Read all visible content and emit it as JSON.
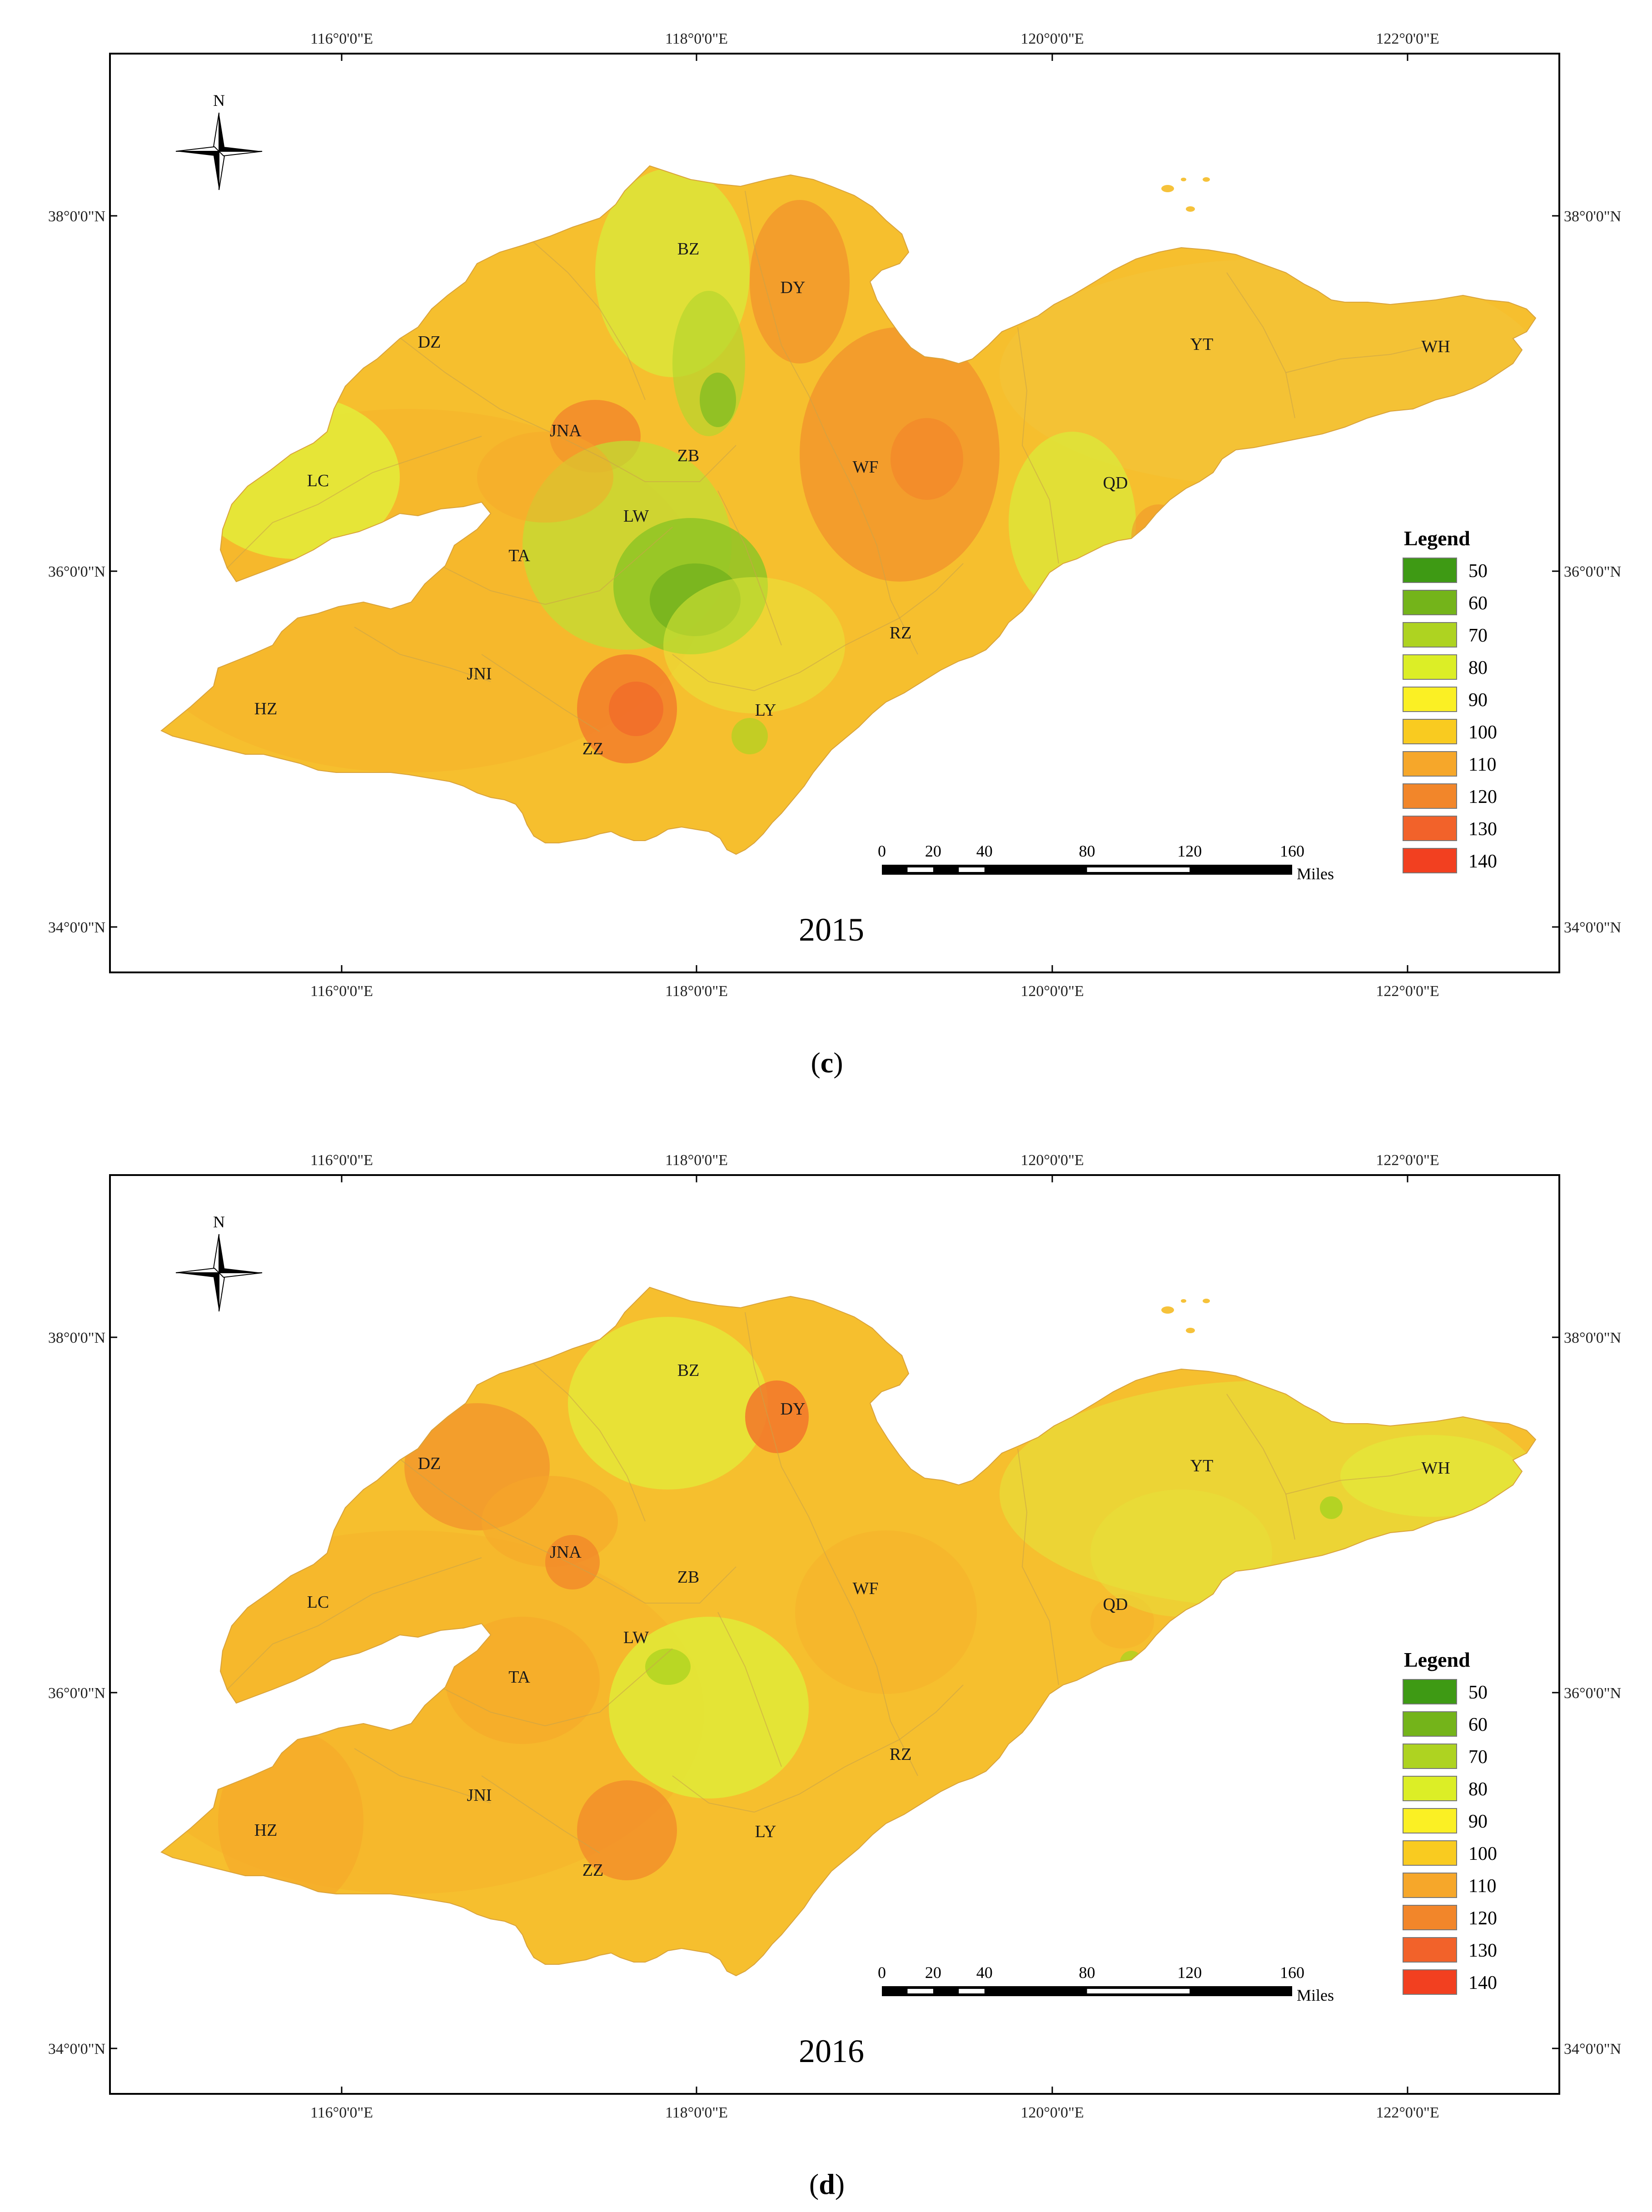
{
  "panels": [
    {
      "id": "c",
      "year_label": "2015",
      "caption_label": "c",
      "lon_ticks": [
        "116°0'0\"E",
        "118°0'0\"E",
        "120°0'0\"E",
        "122°0'0\"E"
      ],
      "lat_ticks": [
        "38°0'0\"N",
        "36°0'0\"N",
        "34°0'0\"N"
      ],
      "north_label": "N",
      "legend": {
        "title": "Legend",
        "entries": [
          {
            "label": "50",
            "color": "#3e9a14"
          },
          {
            "label": "60",
            "color": "#74b41a"
          },
          {
            "label": "70",
            "color": "#aed321"
          },
          {
            "label": "80",
            "color": "#dcee26"
          },
          {
            "label": "90",
            "color": "#fbf024"
          },
          {
            "label": "100",
            "color": "#f9cb20"
          },
          {
            "label": "110",
            "color": "#f6a72a"
          },
          {
            "label": "120",
            "color": "#f2862a"
          },
          {
            "label": "130",
            "color": "#f2622a"
          },
          {
            "label": "140",
            "color": "#f24020"
          }
        ]
      },
      "scale_bar": {
        "ticks": [
          "0",
          "20",
          "40",
          "80",
          "120",
          "160"
        ],
        "unit": "Miles"
      },
      "city_labels": [
        "BZ",
        "DY",
        "DZ",
        "YT",
        "WH",
        "JNA",
        "ZB",
        "WF",
        "LC",
        "QD",
        "LW",
        "TA",
        "RZ",
        "JNI",
        "HZ",
        "LY",
        "ZZ"
      ]
    },
    {
      "id": "d",
      "year_label": "2016",
      "caption_label": "d",
      "lon_ticks": [
        "116°0'0\"E",
        "118°0'0\"E",
        "120°0'0\"E",
        "122°0'0\"E"
      ],
      "lat_ticks": [
        "38°0'0\"N",
        "36°0'0\"N",
        "34°0'0\"N"
      ],
      "north_label": "N",
      "legend": {
        "title": "Legend",
        "entries": [
          {
            "label": "50",
            "color": "#3e9a14"
          },
          {
            "label": "60",
            "color": "#74b41a"
          },
          {
            "label": "70",
            "color": "#aed321"
          },
          {
            "label": "80",
            "color": "#dcee26"
          },
          {
            "label": "90",
            "color": "#fbf024"
          },
          {
            "label": "100",
            "color": "#f9cb20"
          },
          {
            "label": "110",
            "color": "#f6a72a"
          },
          {
            "label": "120",
            "color": "#f2862a"
          },
          {
            "label": "130",
            "color": "#f2622a"
          },
          {
            "label": "140",
            "color": "#f24020"
          }
        ]
      },
      "scale_bar": {
        "ticks": [
          "0",
          "20",
          "40",
          "80",
          "120",
          "160"
        ],
        "unit": "Miles"
      },
      "city_labels": [
        "BZ",
        "DY",
        "DZ",
        "YT",
        "WH",
        "JNA",
        "ZB",
        "WF",
        "LC",
        "QD",
        "LW",
        "TA",
        "RZ",
        "JNI",
        "HZ",
        "LY",
        "ZZ"
      ]
    }
  ]
}
